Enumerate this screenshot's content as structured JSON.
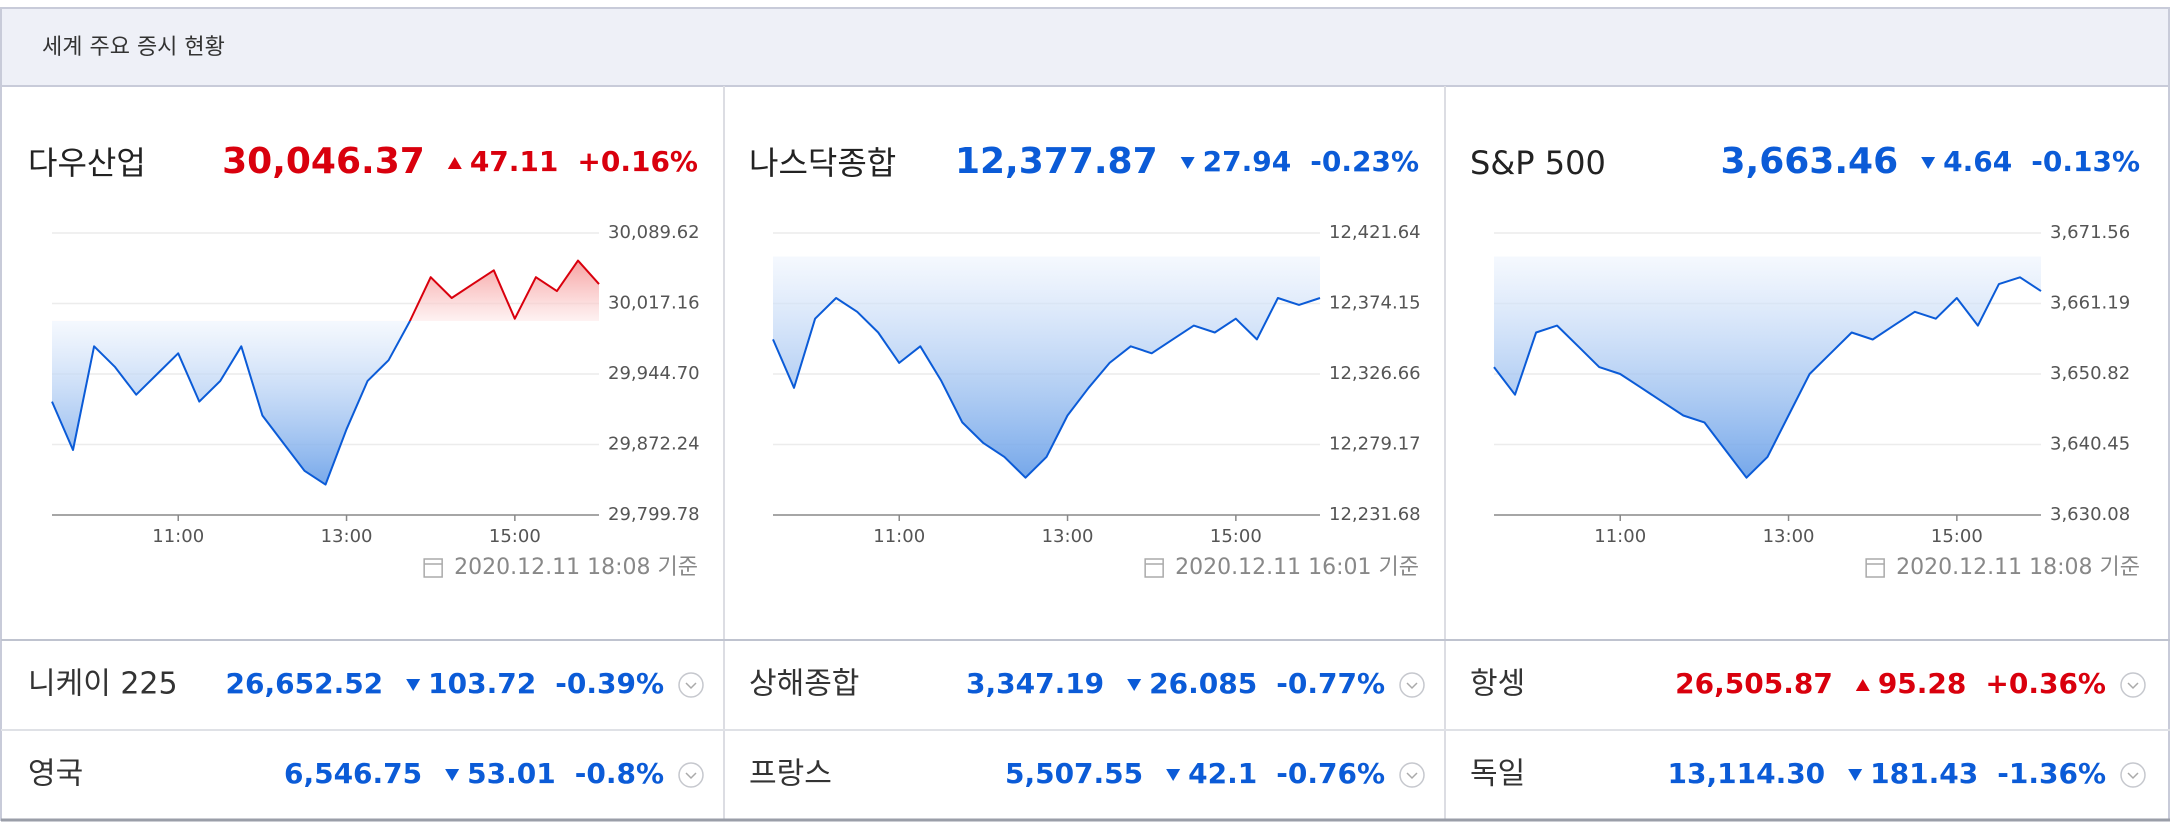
{
  "header": {
    "title": "세계 주요 증시 현황"
  },
  "up_color": "#d9000d",
  "down_color": "#0b5bd7",
  "chart_data": [
    {
      "type": "line",
      "title": "다우산업",
      "price": "30,046.37",
      "change": "47.11",
      "change_pct": "+0.16%",
      "direction": "up",
      "timestamp": "2020.12.11 18:08 기준",
      "x": [
        9.5,
        9.75,
        10,
        10.25,
        10.5,
        10.75,
        11,
        11.25,
        11.5,
        11.75,
        12,
        12.25,
        12.5,
        12.75,
        13,
        13.25,
        13.5,
        13.75,
        14,
        14.25,
        14.5,
        14.75,
        15,
        15.25,
        15.5,
        15.75,
        16
      ],
      "values": [
        29916.29,
        29866.56,
        29973.12,
        29951.81,
        29923.39,
        29944.7,
        29966.01,
        29916.29,
        29937.6,
        29973.12,
        29902.08,
        29873.66,
        29845.25,
        29831.04,
        29887.87,
        29937.6,
        29958.91,
        29998.69,
        30044.16,
        30022.85,
        30037.05,
        30051.26,
        30001.53,
        30044.16,
        30029.95,
        30061.21,
        30037.05
      ],
      "baseline": 29999.26,
      "xlim": [
        9.5,
        16
      ],
      "xticks": [
        {
          "value": 11,
          "label": "11:00"
        },
        {
          "value": 13,
          "label": "13:00"
        },
        {
          "value": 15,
          "label": "15:00"
        }
      ],
      "ylim": [
        29799.78,
        30089.62
      ],
      "yticks": [
        {
          "value": 29799.78,
          "label": "29,799.78"
        },
        {
          "value": 29872.24,
          "label": "29,872.24"
        },
        {
          "value": 29944.7,
          "label": "29,944.70"
        },
        {
          "value": 30017.16,
          "label": "30,017.16"
        },
        {
          "value": 30089.62,
          "label": "30,089.62"
        }
      ],
      "grid": true
    },
    {
      "type": "line",
      "title": "나스닥종합",
      "price": "12,377.87",
      "change": "27.94",
      "change_pct": "-0.23%",
      "direction": "down",
      "timestamp": "2020.12.11 16:01 기준",
      "x": [
        9.5,
        9.75,
        10,
        10.25,
        10.5,
        10.75,
        11,
        11.25,
        11.5,
        11.75,
        12,
        12.25,
        12.5,
        12.75,
        13,
        13.25,
        13.5,
        13.75,
        14,
        14.25,
        14.5,
        14.75,
        15,
        15.25,
        15.5,
        15.75,
        16
      ],
      "values": [
        12349.94,
        12317.35,
        12363.91,
        12377.88,
        12368.57,
        12354.6,
        12334.11,
        12345.29,
        12322.01,
        12294.07,
        12280.1,
        12270.79,
        12256.82,
        12270.79,
        12298.73,
        12317.35,
        12334.11,
        12345.29,
        12340.63,
        12349.94,
        12359.25,
        12354.6,
        12363.91,
        12349.94,
        12377.88,
        12373.22,
        12377.88
      ],
      "baseline": 12405.81,
      "xlim": [
        9.5,
        16
      ],
      "xticks": [
        {
          "value": 11,
          "label": "11:00"
        },
        {
          "value": 13,
          "label": "13:00"
        },
        {
          "value": 15,
          "label": "15:00"
        }
      ],
      "ylim": [
        12231.68,
        12421.64
      ],
      "yticks": [
        {
          "value": 12231.68,
          "label": "12,231.68"
        },
        {
          "value": 12279.17,
          "label": "12,279.17"
        },
        {
          "value": 12326.66,
          "label": "12,326.66"
        },
        {
          "value": 12374.15,
          "label": "12,374.15"
        },
        {
          "value": 12421.64,
          "label": "12,421.64"
        }
      ],
      "grid": true
    },
    {
      "type": "line",
      "title": "S&P 500",
      "price": "3,663.46",
      "change": "4.64",
      "change_pct": "-0.13%",
      "direction": "down",
      "timestamp": "2020.12.11 18:08 기준",
      "x": [
        9.5,
        9.75,
        10,
        10.25,
        10.5,
        10.75,
        11,
        11.25,
        11.5,
        11.75,
        12,
        12.25,
        12.5,
        12.75,
        13,
        13.25,
        13.5,
        13.75,
        14,
        14.25,
        14.5,
        14.75,
        15,
        15.25,
        15.5,
        15.75,
        16
      ],
      "values": [
        3651.84,
        3647.77,
        3656.92,
        3657.94,
        3654.89,
        3651.84,
        3650.82,
        3648.79,
        3646.75,
        3644.72,
        3643.7,
        3639.64,
        3635.57,
        3638.62,
        3644.72,
        3650.82,
        3653.87,
        3656.92,
        3655.9,
        3657.94,
        3659.97,
        3658.95,
        3662.0,
        3657.94,
        3664.04,
        3665.05,
        3663.02
      ],
      "baseline": 3668.1,
      "xlim": [
        9.5,
        16
      ],
      "xticks": [
        {
          "value": 11,
          "label": "11:00"
        },
        {
          "value": 13,
          "label": "13:00"
        },
        {
          "value": 15,
          "label": "15:00"
        }
      ],
      "ylim": [
        3630.08,
        3671.56
      ],
      "yticks": [
        {
          "value": 3630.08,
          "label": "3,630.08"
        },
        {
          "value": 3640.45,
          "label": "3,640.45"
        },
        {
          "value": 3650.82,
          "label": "3,650.82"
        },
        {
          "value": 3661.19,
          "label": "3,661.19"
        },
        {
          "value": 3671.56,
          "label": "3,671.56"
        }
      ],
      "grid": true
    }
  ],
  "indices": [
    {
      "name": "니케이 225",
      "price": "26,652.52",
      "change": "103.72",
      "change_pct": "-0.39%",
      "direction": "down"
    },
    {
      "name": "상해종합",
      "price": "3,347.19",
      "change": "26.085",
      "change_pct": "-0.77%",
      "direction": "down"
    },
    {
      "name": "항셍",
      "price": "26,505.87",
      "change": "95.28",
      "change_pct": "+0.36%",
      "direction": "up"
    },
    {
      "name": "영국",
      "price": "6,546.75",
      "change": "53.01",
      "change_pct": "-0.8%",
      "direction": "down"
    },
    {
      "name": "프랑스",
      "price": "5,507.55",
      "change": "42.1",
      "change_pct": "-0.76%",
      "direction": "down"
    },
    {
      "name": "독일",
      "price": "13,114.30",
      "change": "181.43",
      "change_pct": "-1.36%",
      "direction": "down"
    }
  ]
}
